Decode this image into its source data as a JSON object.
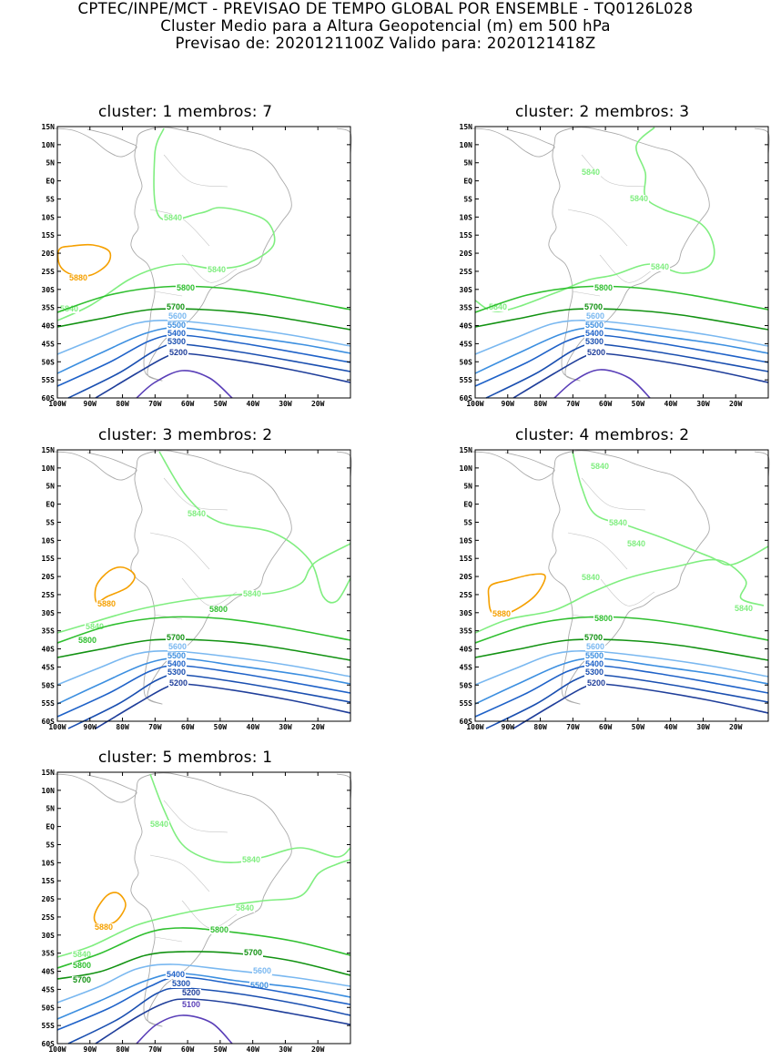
{
  "header": {
    "line1": "CPTEC/INPE/MCT - PREVISAO DE TEMPO GLOBAL POR ENSEMBLE - TQ0126L028",
    "line2": "Cluster Medio para a Altura Geopotencial (m) em 500 hPa",
    "line3": "Previsao de: 2020121100Z    Valido para: 2020121418Z"
  },
  "axes": {
    "lat_labels": [
      "15N",
      "10N",
      "5N",
      "EQ",
      "5S",
      "10S",
      "15S",
      "20S",
      "25S",
      "30S",
      "35S",
      "40S",
      "45S",
      "50S",
      "55S",
      "60S"
    ],
    "lon_labels": [
      "100W",
      "90W",
      "80W",
      "70W",
      "60W",
      "50W",
      "40W",
      "30W",
      "20W"
    ]
  },
  "colors": {
    "5880": "#f5a000",
    "5840": "#80ee80",
    "5800": "#2fbf2f",
    "5700": "#129212",
    "5600": "#7ab8f0",
    "5500": "#3c8fe0",
    "5400": "#1f62c8",
    "5300": "#1a4fb0",
    "5200": "#1f3e9a",
    "5100": "#5a3fb8",
    "coast": "#aaaaaa"
  },
  "panels": [
    {
      "title": "cluster: 1   membros: 7",
      "contours": [
        {
          "level": "5880",
          "label": "5880"
        },
        {
          "level": "5840",
          "label": "5840"
        },
        {
          "level": "5800",
          "label": "5800"
        },
        {
          "level": "5700",
          "label": "5700"
        },
        {
          "level": "5600",
          "label": "5600"
        },
        {
          "level": "5500",
          "label": "5500"
        },
        {
          "level": "5400",
          "label": "5400"
        },
        {
          "level": "5300",
          "label": "5300"
        },
        {
          "level": "5200",
          "label": "5200"
        }
      ]
    },
    {
      "title": "cluster: 2   membros: 3",
      "contours": [
        {
          "level": "5840",
          "label": "5840"
        },
        {
          "level": "5800",
          "label": "5800"
        },
        {
          "level": "5700",
          "label": "5700"
        },
        {
          "level": "5600",
          "label": "5600"
        },
        {
          "level": "5500",
          "label": "5500"
        },
        {
          "level": "5400",
          "label": "5400"
        },
        {
          "level": "5300",
          "label": "5300"
        },
        {
          "level": "5200",
          "label": "5200"
        }
      ]
    },
    {
      "title": "cluster: 3   membros: 2",
      "contours": [
        {
          "level": "5880",
          "label": "5880"
        },
        {
          "level": "5840",
          "label": "5840"
        },
        {
          "level": "5800",
          "label": "5800"
        },
        {
          "level": "5700",
          "label": "5700"
        },
        {
          "level": "5600",
          "label": "5600"
        },
        {
          "level": "5500",
          "label": "5500"
        },
        {
          "level": "5400",
          "label": "5400"
        },
        {
          "level": "5300",
          "label": "5300"
        },
        {
          "level": "5200",
          "label": "5200"
        }
      ]
    },
    {
      "title": "cluster: 4   membros: 2",
      "contours": [
        {
          "level": "5880",
          "label": "5880"
        },
        {
          "level": "5840",
          "label": "5840"
        },
        {
          "level": "5800",
          "label": "5800"
        },
        {
          "level": "5700",
          "label": "5700"
        },
        {
          "level": "5600",
          "label": "5600"
        },
        {
          "level": "5500",
          "label": "5500"
        },
        {
          "level": "5400",
          "label": "5400"
        },
        {
          "level": "5300",
          "label": "5300"
        },
        {
          "level": "5200",
          "label": "5200"
        }
      ]
    },
    {
      "title": "cluster: 5   membros: 1",
      "contours": [
        {
          "level": "5880",
          "label": "5880"
        },
        {
          "level": "5840",
          "label": "5840"
        },
        {
          "level": "5800",
          "label": "5800"
        },
        {
          "level": "5700",
          "label": "5700"
        },
        {
          "level": "5600",
          "label": "5600"
        },
        {
          "level": "5500",
          "label": "5500"
        },
        {
          "level": "5400",
          "label": "5400"
        },
        {
          "level": "5300",
          "label": "5300"
        },
        {
          "level": "5200",
          "label": "5200"
        },
        {
          "level": "5100",
          "label": "5100"
        }
      ]
    }
  ]
}
